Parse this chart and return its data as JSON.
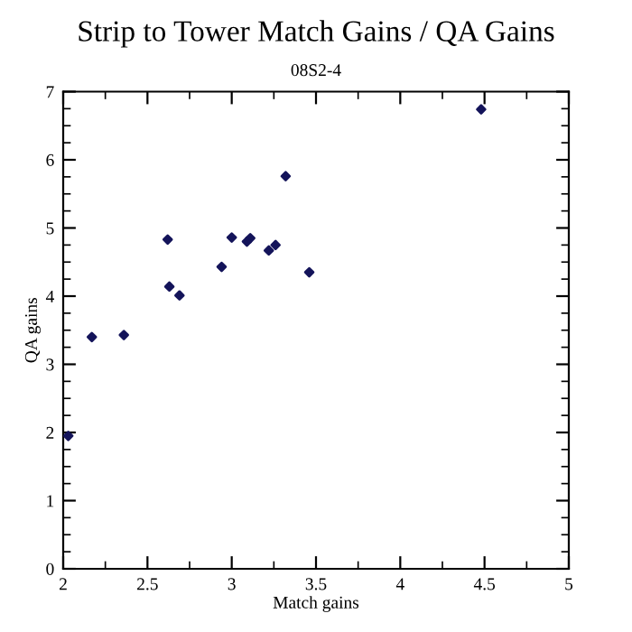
{
  "chart_data": {
    "type": "scatter",
    "title": "Strip to Tower Match Gains / QA Gains",
    "subtitle": "08S2-4",
    "xlabel": "Match gains",
    "ylabel": "QA gains",
    "x": [
      2.03,
      2.17,
      2.36,
      2.62,
      2.63,
      2.69,
      2.94,
      3.0,
      3.09,
      3.11,
      3.22,
      3.26,
      3.32,
      3.46,
      4.48
    ],
    "series": [
      {
        "color": "#14145a",
        "values": [
          1.95,
          3.4,
          3.43,
          4.83,
          4.14,
          4.01,
          4.43,
          4.86,
          4.8,
          4.85,
          4.67,
          4.75,
          5.76,
          4.35,
          6.74
        ]
      }
    ],
    "xlim": [
      2,
      5
    ],
    "ylim": [
      0,
      7
    ],
    "xticks": [
      2,
      2.5,
      3,
      3.5,
      4,
      4.5,
      5
    ],
    "yticks": [
      0,
      1,
      2,
      3,
      4,
      5,
      6,
      7
    ],
    "marker": "diamond",
    "grid": false,
    "legend": false
  }
}
